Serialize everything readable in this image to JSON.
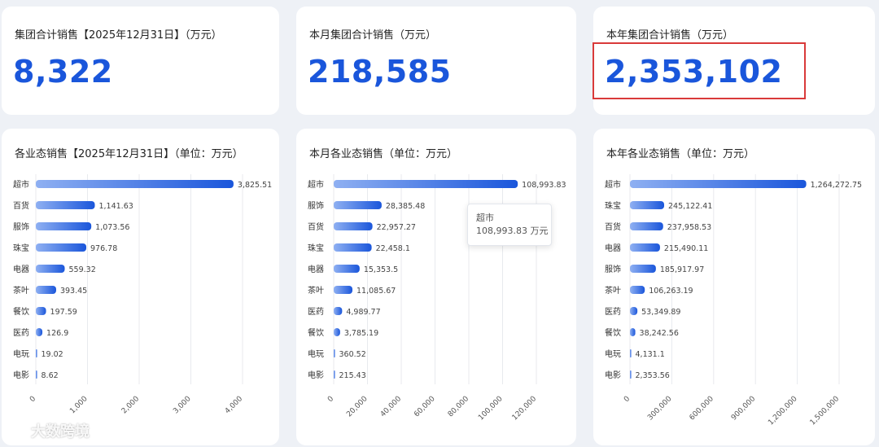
{
  "kpis": [
    {
      "title": "集团合计销售【2025年12月31日】（万元）",
      "value": "8,322"
    },
    {
      "title": "本月集团合计销售（万元）",
      "value": "218,585"
    },
    {
      "title": "本年集团合计销售（万元）",
      "value": "2,353,102"
    }
  ],
  "tooltip": {
    "category": "超市",
    "value": "108,993.83 万元"
  },
  "watermark": "大数跨境",
  "colors": {
    "bar_start": "#8fb0f2",
    "bar_end": "#1a56db",
    "kpi": "#1a56db",
    "highlight": "#d93a3a"
  },
  "chart_data": [
    {
      "type": "bar",
      "orientation": "horizontal",
      "title": "各业态销售【2025年12月31日】（单位：万元）",
      "categories": [
        "超市",
        "百货",
        "服饰",
        "珠宝",
        "电器",
        "茶叶",
        "餐饮",
        "医药",
        "电玩",
        "电影"
      ],
      "values": [
        3825.51,
        1141.63,
        1073.56,
        976.78,
        559.32,
        393.45,
        197.59,
        126.9,
        19.02,
        8.62
      ],
      "value_labels": [
        "3,825.51",
        "1,141.63",
        "1,073.56",
        "976.78",
        "559.32",
        "393.45",
        "197.59",
        "126.9",
        "19.02",
        "8.62"
      ],
      "xlim": [
        0,
        4000
      ],
      "xticks": [
        0,
        1000,
        2000,
        3000,
        4000
      ],
      "xtick_labels": [
        "0",
        "1,000",
        "2,000",
        "3,000",
        "4,000"
      ],
      "grid": true
    },
    {
      "type": "bar",
      "orientation": "horizontal",
      "title": "本月各业态销售（单位：万元）",
      "categories": [
        "超市",
        "服饰",
        "百货",
        "珠宝",
        "电器",
        "茶叶",
        "医药",
        "餐饮",
        "电玩",
        "电影"
      ],
      "values": [
        108993.83,
        28385.48,
        22957.27,
        22458.1,
        15353.5,
        11085.67,
        4989.77,
        3785.19,
        360.52,
        215.43
      ],
      "value_labels": [
        "108,993.83",
        "28,385.48",
        "22,957.27",
        "22,458.1",
        "15,353.5",
        "11,085.67",
        "4,989.77",
        "3,785.19",
        "360.52",
        "215.43"
      ],
      "xlim": [
        0,
        120000
      ],
      "xticks": [
        0,
        20000,
        40000,
        60000,
        80000,
        100000,
        120000
      ],
      "xtick_labels": [
        "0",
        "20,000",
        "40,000",
        "60,000",
        "80,000",
        "100,000",
        "120,000"
      ],
      "grid": true
    },
    {
      "type": "bar",
      "orientation": "horizontal",
      "title": "本年各业态销售（单位：万元）",
      "categories": [
        "超市",
        "珠宝",
        "百货",
        "电器",
        "服饰",
        "茶叶",
        "医药",
        "餐饮",
        "电玩",
        "电影"
      ],
      "values": [
        1264272.75,
        245122.41,
        237958.53,
        215490.11,
        185917.97,
        106263.19,
        53349.89,
        38242.56,
        4131.1,
        2353.56
      ],
      "value_labels": [
        "1,264,272.75",
        "245,122.41",
        "237,958.53",
        "215,490.11",
        "185,917.97",
        "106,263.19",
        "53,349.89",
        "38,242.56",
        "4,131.1",
        "2,353.56"
      ],
      "xlim": [
        0,
        1500000
      ],
      "xticks": [
        0,
        300000,
        600000,
        900000,
        1200000,
        1500000
      ],
      "xtick_labels": [
        "0",
        "300,000",
        "600,000",
        "900,000",
        "1,200,000",
        "1,500,000"
      ],
      "grid": true
    }
  ]
}
